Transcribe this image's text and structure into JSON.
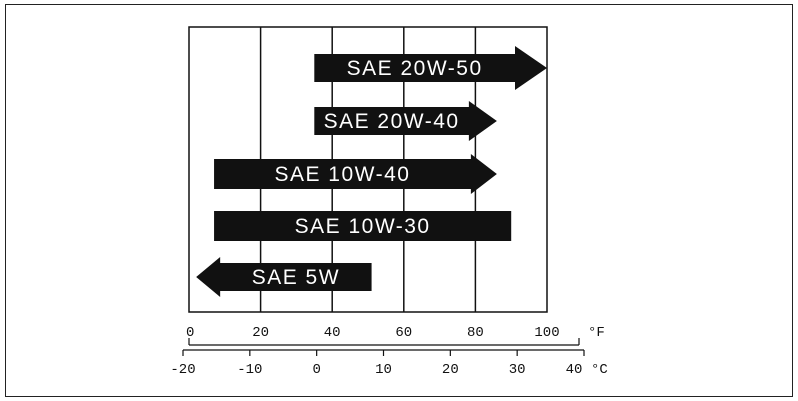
{
  "chart_data": {
    "type": "bar",
    "description_free": true,
    "fahrenheit_axis": {
      "ticks": [
        0,
        20,
        40,
        60,
        80,
        100
      ],
      "tick_labels": [
        "0",
        "20",
        "40",
        "60",
        "80",
        "100"
      ],
      "unit": "°F",
      "range": [
        0,
        100
      ]
    },
    "celsius_axis": {
      "ticks": [
        -20,
        -10,
        0,
        10,
        20,
        30,
        40
      ],
      "tick_labels": [
        "-20",
        "-10",
        "0",
        "10",
        "20",
        "30",
        "40"
      ],
      "unit": "°C"
    },
    "series": [
      {
        "name": "SAE 20W-50",
        "from_f": 35,
        "to_f": 100,
        "arrow_left": false,
        "arrow_right": true
      },
      {
        "name": "SAE 20W-40",
        "from_f": 35,
        "to_f": 86,
        "arrow_left": false,
        "arrow_right": true
      },
      {
        "name": "SAE 10W-40",
        "from_f": 7,
        "to_f": 86,
        "arrow_left": false,
        "arrow_right": true
      },
      {
        "name": "SAE 10W-30",
        "from_f": 7,
        "to_f": 90,
        "arrow_left": false,
        "arrow_right": false
      },
      {
        "name": "SAE 5W",
        "from_f": 2,
        "to_f": 51,
        "arrow_left": true,
        "arrow_right": false
      }
    ],
    "colors": {
      "band": "#111111",
      "band_text": "#ffffff",
      "grid": "#111111"
    }
  }
}
